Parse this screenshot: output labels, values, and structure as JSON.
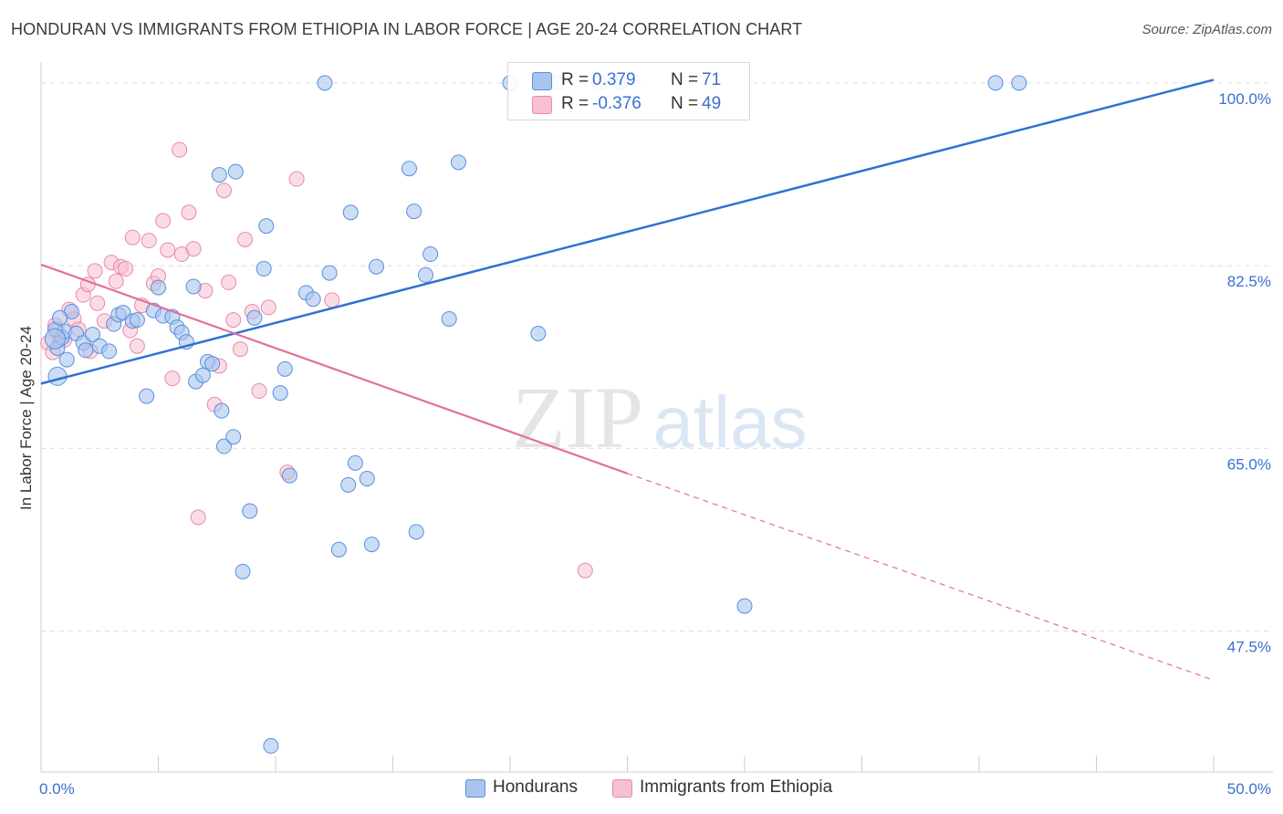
{
  "title": "HONDURAN VS IMMIGRANTS FROM ETHIOPIA IN LABOR FORCE | AGE 20-24 CORRELATION CHART",
  "source": "Source: ZipAtlas.com",
  "watermark": {
    "zip": "ZIP",
    "atlas": "atlas"
  },
  "legend": {
    "r_label": "R =",
    "n_label": "N =",
    "rows": [
      {
        "r": "0.379",
        "n": "71"
      },
      {
        "r": "-0.376",
        "n": "49"
      }
    ]
  },
  "bottom_legend": [
    "Hondurans",
    "Immigrants from Ethiopia"
  ],
  "colors": {
    "blue_fill": "#a9c5ee",
    "blue_stroke": "#5b8fde",
    "blue_line": "#2f72d1",
    "pink_fill": "#f6c0d0",
    "pink_stroke": "#e98aa9",
    "pink_line": "#e2709a",
    "axis_text": "#3a6fd0",
    "grid": "#dedede"
  },
  "chart_data": {
    "type": "scatter",
    "title": "HONDURAN VS IMMIGRANTS FROM ETHIOPIA IN LABOR FORCE | AGE 20-24 CORRELATION CHART",
    "xlabel": "",
    "ylabel": "In Labor Force | Age 20-24",
    "xlim": [
      0,
      50
    ],
    "ylim": [
      34,
      102
    ],
    "x_tick_labels": [
      {
        "value": 0,
        "label": "0.0%"
      },
      {
        "value": 50,
        "label": "50.0%"
      }
    ],
    "y_ticks": [
      {
        "value": 47.5,
        "label": "47.5%"
      },
      {
        "value": 65.0,
        "label": "65.0%"
      },
      {
        "value": 82.5,
        "label": "82.5%"
      },
      {
        "value": 100.0,
        "label": "100.0%"
      }
    ],
    "grid": true,
    "legend_position": "top-center",
    "series": [
      {
        "name": "Hondurans",
        "r": 0.379,
        "n": 71,
        "trend": {
          "x": [
            0,
            50
          ],
          "y": [
            71.2,
            100.3
          ]
        },
        "points": [
          [
            0.7,
            74.6
          ],
          [
            0.9,
            75.6
          ],
          [
            1.0,
            76.2
          ],
          [
            1.1,
            73.5
          ],
          [
            1.3,
            78.1
          ],
          [
            1.5,
            76.0
          ],
          [
            1.8,
            75.1
          ],
          [
            1.9,
            74.4
          ],
          [
            2.2,
            75.9
          ],
          [
            2.5,
            74.8
          ],
          [
            2.9,
            74.3
          ],
          [
            3.1,
            76.9
          ],
          [
            3.3,
            77.8
          ],
          [
            3.5,
            78.0
          ],
          [
            3.9,
            77.2
          ],
          [
            4.1,
            77.3
          ],
          [
            4.5,
            70.0
          ],
          [
            4.8,
            78.2
          ],
          [
            5.0,
            80.4
          ],
          [
            5.2,
            77.7
          ],
          [
            5.6,
            77.6
          ],
          [
            5.8,
            76.6
          ],
          [
            6.0,
            76.1
          ],
          [
            6.2,
            75.2
          ],
          [
            6.5,
            80.5
          ],
          [
            6.6,
            71.4
          ],
          [
            6.9,
            72.0
          ],
          [
            7.1,
            73.3
          ],
          [
            7.3,
            73.1
          ],
          [
            7.6,
            91.2
          ],
          [
            7.7,
            68.6
          ],
          [
            7.8,
            65.2
          ],
          [
            8.2,
            66.1
          ],
          [
            8.3,
            91.5
          ],
          [
            8.6,
            53.2
          ],
          [
            8.9,
            59.0
          ],
          [
            9.1,
            77.5
          ],
          [
            9.5,
            82.2
          ],
          [
            9.6,
            86.3
          ],
          [
            9.8,
            36.5
          ],
          [
            10.2,
            70.3
          ],
          [
            10.4,
            72.6
          ],
          [
            10.6,
            62.4
          ],
          [
            11.3,
            79.9
          ],
          [
            11.6,
            79.3
          ],
          [
            12.1,
            100.0
          ],
          [
            12.3,
            81.8
          ],
          [
            12.7,
            55.3
          ],
          [
            13.1,
            61.5
          ],
          [
            13.2,
            87.6
          ],
          [
            13.4,
            63.6
          ],
          [
            13.9,
            62.1
          ],
          [
            14.1,
            55.8
          ],
          [
            14.3,
            82.4
          ],
          [
            15.7,
            91.8
          ],
          [
            15.9,
            87.7
          ],
          [
            16.0,
            57.0
          ],
          [
            16.4,
            81.6
          ],
          [
            16.6,
            83.6
          ],
          [
            17.4,
            77.4
          ],
          [
            17.8,
            92.4
          ],
          [
            20.0,
            100.0
          ],
          [
            21.2,
            76.0
          ],
          [
            22.0,
            100.0
          ],
          [
            23.8,
            100.0
          ],
          [
            24.7,
            100.0
          ],
          [
            30.0,
            49.9
          ],
          [
            40.7,
            100.0
          ],
          [
            41.7,
            100.0
          ],
          [
            0.6,
            76.4
          ],
          [
            0.8,
            77.5
          ]
        ]
      },
      {
        "name": "Immigrants from Ethiopia",
        "r": -0.376,
        "n": 49,
        "trend": {
          "x": [
            0,
            25
          ],
          "y": [
            82.6,
            62.6
          ]
        },
        "trend_extension": {
          "x": [
            25,
            50
          ],
          "y": [
            62.6,
            42.8
          ]
        },
        "points": [
          [
            0.3,
            75.1
          ],
          [
            0.5,
            74.2
          ],
          [
            0.6,
            76.8
          ],
          [
            0.7,
            76.3
          ],
          [
            0.8,
            75.4
          ],
          [
            1.0,
            75.4
          ],
          [
            1.2,
            78.3
          ],
          [
            1.4,
            77.4
          ],
          [
            1.6,
            76.4
          ],
          [
            1.8,
            79.7
          ],
          [
            2.0,
            80.7
          ],
          [
            2.1,
            74.3
          ],
          [
            2.3,
            82.0
          ],
          [
            2.4,
            78.9
          ],
          [
            2.7,
            77.2
          ],
          [
            3.0,
            82.8
          ],
          [
            3.2,
            81.0
          ],
          [
            3.4,
            82.4
          ],
          [
            3.6,
            82.2
          ],
          [
            3.8,
            76.3
          ],
          [
            3.9,
            85.2
          ],
          [
            4.1,
            74.8
          ],
          [
            4.3,
            78.7
          ],
          [
            4.6,
            84.9
          ],
          [
            4.8,
            80.8
          ],
          [
            5.0,
            81.5
          ],
          [
            5.2,
            86.8
          ],
          [
            5.4,
            84.0
          ],
          [
            5.6,
            71.7
          ],
          [
            5.9,
            93.6
          ],
          [
            6.0,
            83.6
          ],
          [
            6.3,
            87.6
          ],
          [
            6.5,
            84.1
          ],
          [
            6.7,
            58.4
          ],
          [
            7.0,
            80.1
          ],
          [
            7.4,
            69.2
          ],
          [
            7.6,
            72.9
          ],
          [
            7.8,
            89.7
          ],
          [
            8.0,
            80.9
          ],
          [
            8.2,
            77.3
          ],
          [
            8.5,
            74.5
          ],
          [
            8.7,
            85.0
          ],
          [
            9.0,
            78.1
          ],
          [
            9.3,
            70.5
          ],
          [
            9.7,
            78.5
          ],
          [
            10.5,
            62.7
          ],
          [
            10.9,
            90.8
          ],
          [
            12.4,
            79.2
          ],
          [
            23.2,
            53.3
          ]
        ]
      }
    ]
  }
}
